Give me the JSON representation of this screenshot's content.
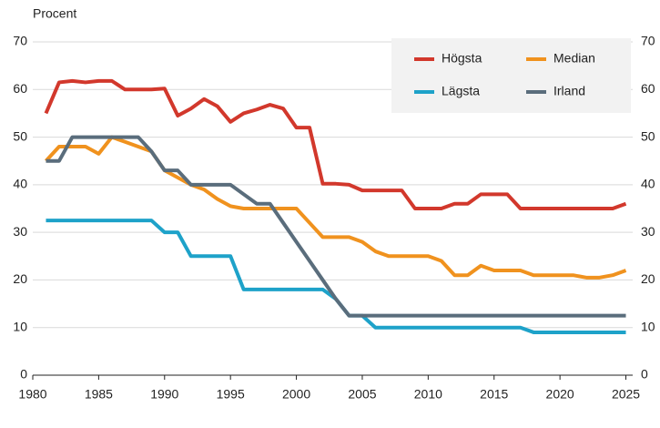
{
  "chart_data": {
    "type": "line",
    "ylabel": "Procent",
    "x": [
      1981,
      1982,
      1983,
      1984,
      1985,
      1986,
      1987,
      1988,
      1989,
      1990,
      1991,
      1992,
      1993,
      1994,
      1995,
      1996,
      1997,
      1998,
      1999,
      2000,
      2001,
      2002,
      2003,
      2004,
      2005,
      2006,
      2007,
      2008,
      2009,
      2010,
      2011,
      2012,
      2013,
      2014,
      2015,
      2016,
      2017,
      2018,
      2019,
      2020,
      2021,
      2022,
      2023,
      2024,
      2025
    ],
    "series": [
      {
        "name": "Högsta",
        "color": "#d2382c",
        "values": [
          55,
          61.5,
          61.8,
          61.5,
          61.8,
          61.8,
          60,
          60,
          60,
          60.2,
          54.5,
          56,
          58,
          56.5,
          53.2,
          55,
          55.8,
          56.8,
          56,
          52,
          52,
          40.2,
          40.2,
          40,
          38.8,
          38.8,
          38.8,
          38.8,
          35,
          35,
          35,
          36,
          36,
          38,
          38,
          38,
          35,
          35,
          35,
          35,
          35,
          35,
          35,
          35,
          36
        ]
      },
      {
        "name": "Median",
        "color": "#f0921e",
        "values": [
          45,
          48,
          48,
          48,
          46.5,
          50,
          49,
          48,
          47,
          43,
          41.5,
          40,
          39,
          37,
          35.5,
          35,
          35,
          35,
          35,
          35,
          32,
          29,
          29,
          29,
          28,
          26,
          25,
          25,
          25,
          25,
          24,
          21,
          21,
          23,
          22,
          22,
          22,
          21,
          21,
          21,
          21,
          20.5,
          20.5,
          21,
          22
        ]
      },
      {
        "name": "Lägsta",
        "color": "#1ea2c9",
        "values": [
          32.5,
          32.5,
          32.5,
          32.5,
          32.5,
          32.5,
          32.5,
          32.5,
          32.5,
          30,
          30,
          25,
          25,
          25,
          25,
          18,
          18,
          18,
          18,
          18,
          18,
          18,
          16,
          12.5,
          12.5,
          10,
          10,
          10,
          10,
          10,
          10,
          10,
          10,
          10,
          10,
          10,
          10,
          9,
          9,
          9,
          9,
          9,
          9,
          9,
          9
        ]
      },
      {
        "name": "Irland",
        "color": "#5a6d7c",
        "values": [
          45,
          45,
          50,
          50,
          50,
          50,
          50,
          50,
          47,
          43,
          43,
          40,
          40,
          40,
          40,
          38,
          36,
          36,
          32,
          28,
          24,
          20,
          16,
          12.5,
          12.5,
          12.5,
          12.5,
          12.5,
          12.5,
          12.5,
          12.5,
          12.5,
          12.5,
          12.5,
          12.5,
          12.5,
          12.5,
          12.5,
          12.5,
          12.5,
          12.5,
          12.5,
          12.5,
          12.5,
          12.5
        ]
      }
    ],
    "xlim": [
      1980,
      2026
    ],
    "xticks": [
      1980,
      1985,
      1990,
      1995,
      2000,
      2005,
      2010,
      2015,
      2020,
      2025
    ],
    "ylim": [
      0,
      70
    ],
    "yticks": [
      0,
      10,
      20,
      30,
      40,
      50,
      60,
      70
    ],
    "y2lim": [
      0,
      70
    ],
    "y2ticks": [
      0,
      10,
      20,
      30,
      40,
      50,
      60,
      70
    ],
    "grid": true,
    "legend": "upper right"
  }
}
